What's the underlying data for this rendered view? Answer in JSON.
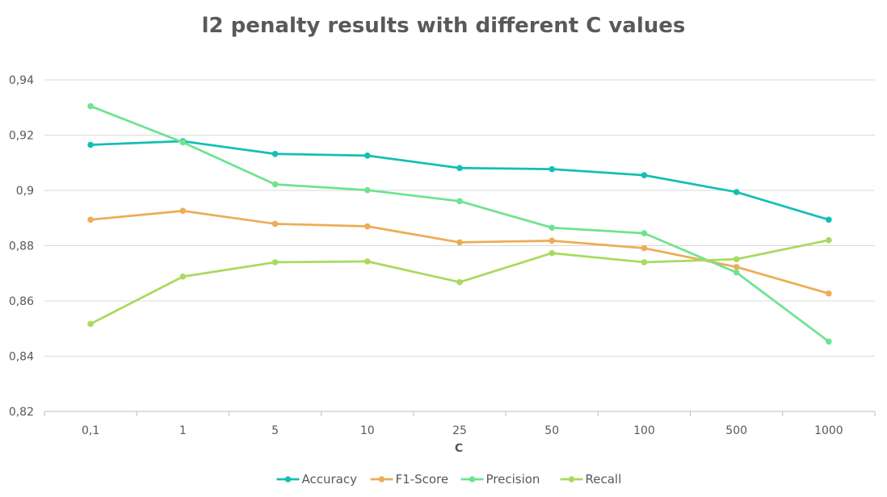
{
  "chart_data": {
    "type": "line",
    "title": "l2 penalty results with different C values",
    "xlabel": "C",
    "ylabel": "",
    "categories": [
      "0,1",
      "1",
      "5",
      "10",
      "25",
      "50",
      "100",
      "500",
      "1000"
    ],
    "ylim": [
      0.82,
      0.94
    ],
    "yticks": [
      0.82,
      0.84,
      0.86,
      0.88,
      0.9,
      0.92,
      0.94
    ],
    "ytick_labels": [
      "0,82",
      "0,84",
      "0,86",
      "0,88",
      "0,9",
      "0,92",
      "0,94"
    ],
    "grid": true,
    "legend_position": "bottom",
    "series": [
      {
        "name": "Accuracy",
        "color": "#14BFB3",
        "values": [
          0.9165,
          0.9178,
          0.9132,
          0.9126,
          0.9081,
          0.9077,
          0.9055,
          0.8994,
          0.8894
        ]
      },
      {
        "name": "F1-Score",
        "color": "#EDAD55",
        "values": [
          0.8894,
          0.8926,
          0.8879,
          0.887,
          0.8812,
          0.8818,
          0.8791,
          0.8723,
          0.8627
        ]
      },
      {
        "name": "Precision",
        "color": "#6EE391",
        "values": [
          0.9305,
          0.9174,
          0.9022,
          0.9001,
          0.8961,
          0.8865,
          0.8845,
          0.8703,
          0.8453
        ]
      },
      {
        "name": "Recall",
        "color": "#A9DA5E",
        "values": [
          0.8517,
          0.8688,
          0.874,
          0.8743,
          0.8668,
          0.8773,
          0.874,
          0.8751,
          0.882
        ]
      }
    ]
  }
}
